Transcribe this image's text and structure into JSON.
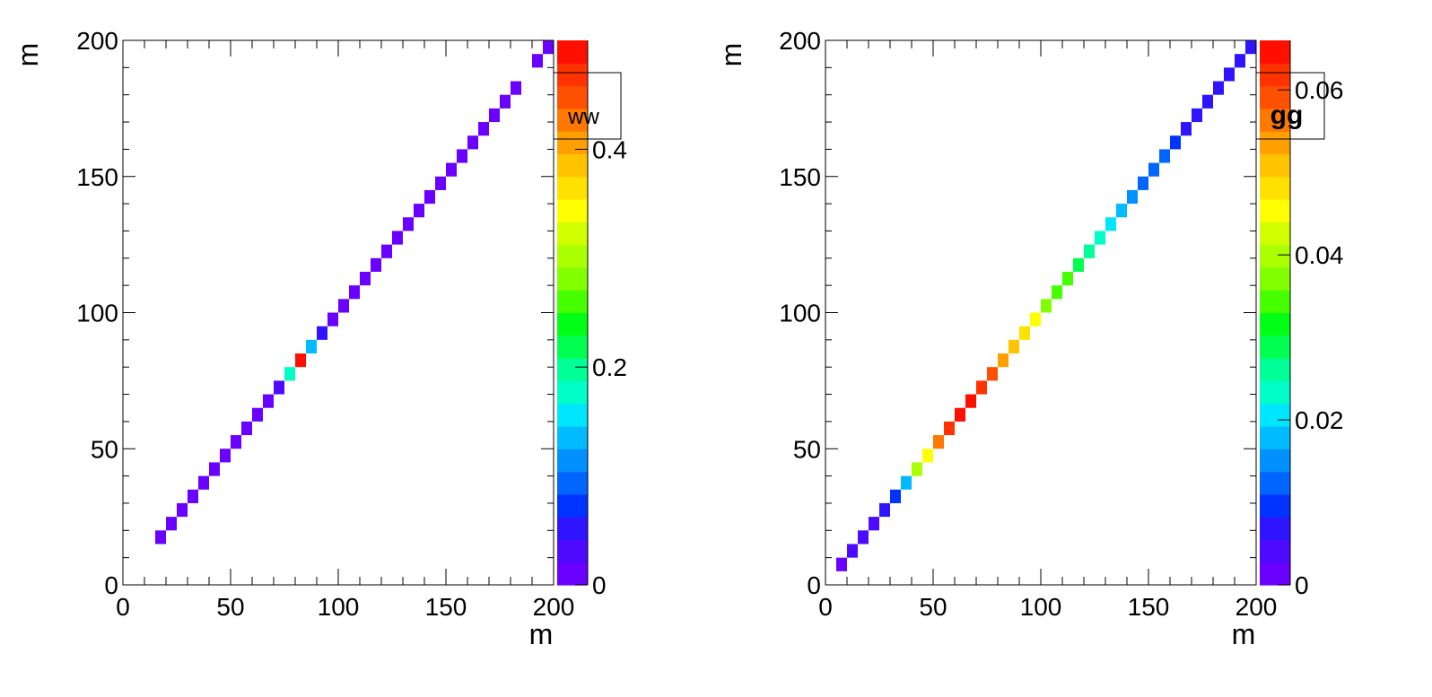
{
  "palette": [
    "#6a00ff",
    "#4d0aff",
    "#2f14ff",
    "#0033ff",
    "#0066ff",
    "#0091ff",
    "#00bbff",
    "#00e6ff",
    "#00ffc8",
    "#00ff96",
    "#00ff50",
    "#00ff14",
    "#46ff00",
    "#82ff00",
    "#aaff00",
    "#d2ff00",
    "#ffff00",
    "#ffe100",
    "#ffc300",
    "#ffa000",
    "#ff7800",
    "#ff5000",
    "#ff3200",
    "#ff0f00"
  ],
  "chart_data": [
    {
      "type": "heatmap",
      "xlabel": "m",
      "ylabel": "m",
      "xlim": [
        0,
        200
      ],
      "ylim": [
        0,
        200
      ],
      "xticks": [
        "0",
        "50",
        "100",
        "150",
        "200"
      ],
      "yticks": [
        "0",
        "50",
        "100",
        "150",
        "200"
      ],
      "bin_width": 5,
      "zlim": [
        0,
        0.5
      ],
      "colorbar_ticks": [
        {
          "value": 0,
          "label": "0"
        },
        {
          "value": 0.2,
          "label": "0.2"
        },
        {
          "value": 0.4,
          "label": "0.4"
        }
      ],
      "legend": "ww",
      "legend_bold": false,
      "cells": [
        {
          "x": 17.5,
          "y": 17.5,
          "z": 0.01
        },
        {
          "x": 22.5,
          "y": 22.5,
          "z": 0.01
        },
        {
          "x": 27.5,
          "y": 27.5,
          "z": 0.01
        },
        {
          "x": 32.5,
          "y": 32.5,
          "z": 0.01
        },
        {
          "x": 37.5,
          "y": 37.5,
          "z": 0.01
        },
        {
          "x": 42.5,
          "y": 42.5,
          "z": 0.01
        },
        {
          "x": 47.5,
          "y": 47.5,
          "z": 0.01
        },
        {
          "x": 52.5,
          "y": 52.5,
          "z": 0.01
        },
        {
          "x": 57.5,
          "y": 57.5,
          "z": 0.01
        },
        {
          "x": 62.5,
          "y": 62.5,
          "z": 0.01
        },
        {
          "x": 67.5,
          "y": 67.5,
          "z": 0.01
        },
        {
          "x": 72.5,
          "y": 72.5,
          "z": 0.03
        },
        {
          "x": 77.5,
          "y": 77.5,
          "z": 0.18
        },
        {
          "x": 82.5,
          "y": 82.5,
          "z": 0.49
        },
        {
          "x": 87.5,
          "y": 87.5,
          "z": 0.13
        },
        {
          "x": 92.5,
          "y": 92.5,
          "z": 0.06
        },
        {
          "x": 97.5,
          "y": 97.5,
          "z": 0.01
        },
        {
          "x": 102.5,
          "y": 102.5,
          "z": 0.01
        },
        {
          "x": 107.5,
          "y": 107.5,
          "z": 0.01
        },
        {
          "x": 112.5,
          "y": 112.5,
          "z": 0.01
        },
        {
          "x": 117.5,
          "y": 117.5,
          "z": 0.01
        },
        {
          "x": 122.5,
          "y": 122.5,
          "z": 0.01
        },
        {
          "x": 127.5,
          "y": 127.5,
          "z": 0.01
        },
        {
          "x": 132.5,
          "y": 132.5,
          "z": 0.01
        },
        {
          "x": 137.5,
          "y": 137.5,
          "z": 0.01
        },
        {
          "x": 142.5,
          "y": 142.5,
          "z": 0.01
        },
        {
          "x": 147.5,
          "y": 147.5,
          "z": 0.01
        },
        {
          "x": 152.5,
          "y": 152.5,
          "z": 0.01
        },
        {
          "x": 157.5,
          "y": 157.5,
          "z": 0.01
        },
        {
          "x": 162.5,
          "y": 162.5,
          "z": 0.01
        },
        {
          "x": 167.5,
          "y": 167.5,
          "z": 0.01
        },
        {
          "x": 172.5,
          "y": 172.5,
          "z": 0.01
        },
        {
          "x": 177.5,
          "y": 177.5,
          "z": 0.01
        },
        {
          "x": 182.5,
          "y": 182.5,
          "z": 0.01
        },
        {
          "x": 192.5,
          "y": 192.5,
          "z": 0.01
        },
        {
          "x": 197.5,
          "y": 197.5,
          "z": 0.01
        }
      ]
    },
    {
      "type": "heatmap",
      "xlabel": "m",
      "ylabel": "m",
      "xlim": [
        0,
        200
      ],
      "ylim": [
        0,
        200
      ],
      "xticks": [
        "0",
        "50",
        "100",
        "150",
        "200"
      ],
      "yticks": [
        "0",
        "50",
        "100",
        "150",
        "200"
      ],
      "bin_width": 5,
      "zlim": [
        0,
        0.066
      ],
      "colorbar_ticks": [
        {
          "value": 0,
          "label": "0"
        },
        {
          "value": 0.02,
          "label": "0.02"
        },
        {
          "value": 0.04,
          "label": "0.04"
        },
        {
          "value": 0.06,
          "label": "0.06"
        }
      ],
      "legend": "gg",
      "legend_bold": true,
      "cells": [
        {
          "x": 7.5,
          "y": 7.5,
          "z": 0.001
        },
        {
          "x": 12.5,
          "y": 12.5,
          "z": 0.004
        },
        {
          "x": 17.5,
          "y": 17.5,
          "z": 0.004
        },
        {
          "x": 22.5,
          "y": 22.5,
          "z": 0.004
        },
        {
          "x": 27.5,
          "y": 27.5,
          "z": 0.007
        },
        {
          "x": 32.5,
          "y": 32.5,
          "z": 0.01
        },
        {
          "x": 37.5,
          "y": 37.5,
          "z": 0.019
        },
        {
          "x": 42.5,
          "y": 42.5,
          "z": 0.041
        },
        {
          "x": 47.5,
          "y": 47.5,
          "z": 0.046
        },
        {
          "x": 52.5,
          "y": 52.5,
          "z": 0.057
        },
        {
          "x": 57.5,
          "y": 57.5,
          "z": 0.063
        },
        {
          "x": 62.5,
          "y": 62.5,
          "z": 0.065
        },
        {
          "x": 67.5,
          "y": 67.5,
          "z": 0.065
        },
        {
          "x": 72.5,
          "y": 72.5,
          "z": 0.063
        },
        {
          "x": 77.5,
          "y": 77.5,
          "z": 0.058
        },
        {
          "x": 82.5,
          "y": 82.5,
          "z": 0.054
        },
        {
          "x": 87.5,
          "y": 87.5,
          "z": 0.052
        },
        {
          "x": 92.5,
          "y": 92.5,
          "z": 0.047
        },
        {
          "x": 97.5,
          "y": 97.5,
          "z": 0.044
        },
        {
          "x": 102.5,
          "y": 102.5,
          "z": 0.038
        },
        {
          "x": 107.5,
          "y": 107.5,
          "z": 0.035
        },
        {
          "x": 112.5,
          "y": 112.5,
          "z": 0.033
        },
        {
          "x": 117.5,
          "y": 117.5,
          "z": 0.03
        },
        {
          "x": 122.5,
          "y": 122.5,
          "z": 0.027
        },
        {
          "x": 127.5,
          "y": 127.5,
          "z": 0.022
        },
        {
          "x": 132.5,
          "y": 132.5,
          "z": 0.02
        },
        {
          "x": 137.5,
          "y": 137.5,
          "z": 0.019
        },
        {
          "x": 142.5,
          "y": 142.5,
          "z": 0.016
        },
        {
          "x": 147.5,
          "y": 147.5,
          "z": 0.013
        },
        {
          "x": 152.5,
          "y": 152.5,
          "z": 0.013
        },
        {
          "x": 157.5,
          "y": 157.5,
          "z": 0.013
        },
        {
          "x": 162.5,
          "y": 162.5,
          "z": 0.01
        },
        {
          "x": 167.5,
          "y": 167.5,
          "z": 0.008
        },
        {
          "x": 172.5,
          "y": 172.5,
          "z": 0.007
        },
        {
          "x": 177.5,
          "y": 177.5,
          "z": 0.007
        },
        {
          "x": 182.5,
          "y": 182.5,
          "z": 0.007
        },
        {
          "x": 187.5,
          "y": 187.5,
          "z": 0.007
        },
        {
          "x": 192.5,
          "y": 192.5,
          "z": 0.007
        },
        {
          "x": 197.5,
          "y": 197.5,
          "z": 0.007
        }
      ]
    }
  ]
}
